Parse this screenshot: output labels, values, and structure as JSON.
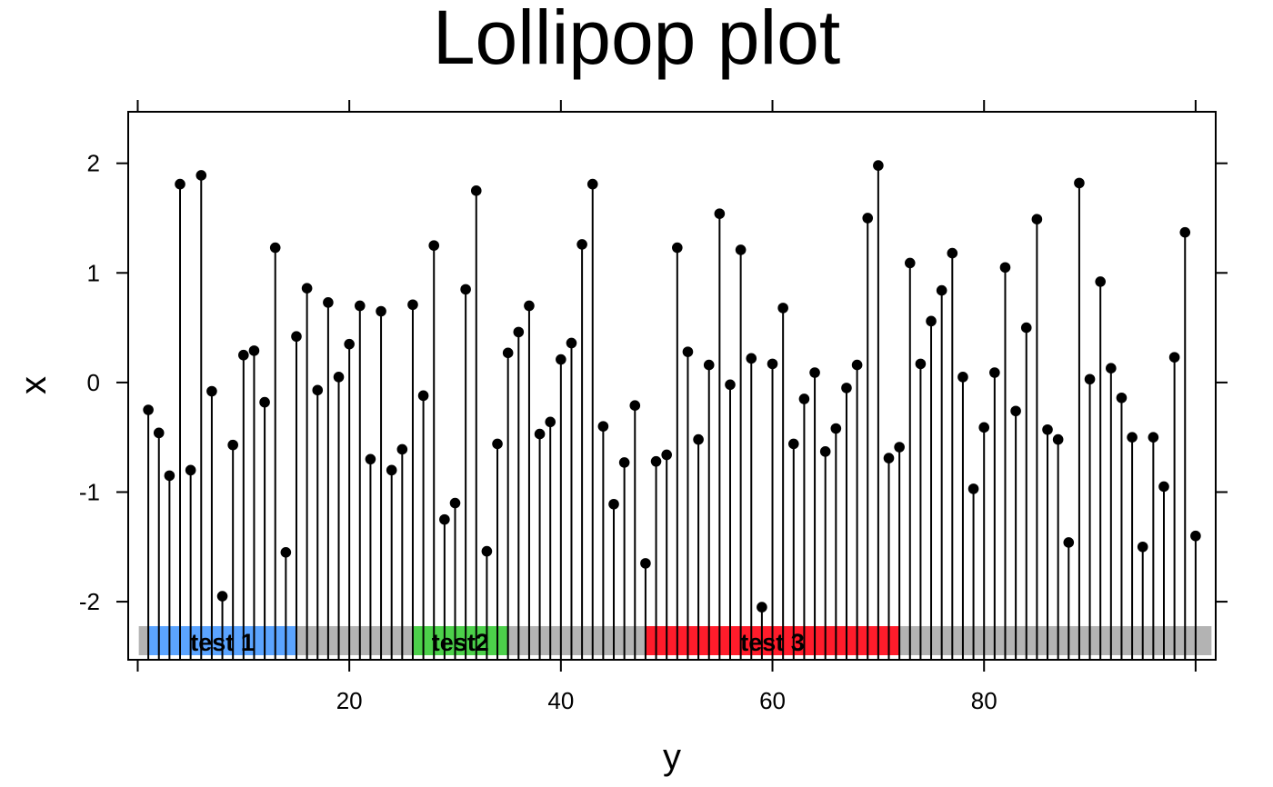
{
  "chart_data": {
    "type": "lollipop",
    "title": "Lollipop plot",
    "xlabel": "y",
    "ylabel": "x",
    "xlim": [
      -0.9,
      101.9
    ],
    "ylim": [
      -2.53,
      2.47
    ],
    "x_ticks": [
      20,
      40,
      60,
      80
    ],
    "x_minor_ticks": [
      0,
      100
    ],
    "y_ticks": [
      -2,
      -1,
      0,
      1,
      2
    ],
    "baseline": -2.53,
    "grid": false,
    "x": [
      1,
      2,
      3,
      4,
      5,
      6,
      7,
      8,
      9,
      10,
      11,
      12,
      13,
      14,
      15,
      16,
      17,
      18,
      19,
      20,
      21,
      22,
      23,
      24,
      25,
      26,
      27,
      28,
      29,
      30,
      31,
      32,
      33,
      34,
      35,
      36,
      37,
      38,
      39,
      40,
      41,
      42,
      43,
      44,
      45,
      46,
      47,
      48,
      49,
      50,
      51,
      52,
      53,
      54,
      55,
      56,
      57,
      58,
      59,
      60,
      61,
      62,
      63,
      64,
      65,
      66,
      67,
      68,
      69,
      70,
      71,
      72,
      73,
      74,
      75,
      76,
      77,
      78,
      79,
      80,
      81,
      82,
      83,
      84,
      85,
      86,
      87,
      88,
      89,
      90,
      91,
      92,
      93,
      94,
      95,
      96,
      97,
      98,
      99,
      100
    ],
    "values": [
      -0.25,
      -0.46,
      -0.85,
      1.81,
      -0.8,
      1.89,
      -0.08,
      -1.95,
      -0.57,
      0.25,
      0.29,
      -0.18,
      1.23,
      -1.55,
      0.42,
      0.86,
      -0.07,
      0.73,
      0.05,
      0.35,
      0.7,
      -0.7,
      0.65,
      -0.8,
      -0.61,
      0.71,
      -0.12,
      1.25,
      -1.25,
      -1.1,
      0.85,
      1.75,
      -1.54,
      -0.56,
      0.27,
      0.46,
      0.7,
      -0.47,
      -0.36,
      0.21,
      0.36,
      1.26,
      1.81,
      -0.4,
      -1.11,
      -0.73,
      -0.21,
      -1.65,
      -0.72,
      -0.66,
      1.23,
      0.28,
      -0.52,
      0.16,
      1.54,
      -0.02,
      1.21,
      0.22,
      -2.05,
      0.17,
      0.68,
      -0.56,
      -0.15,
      0.09,
      -0.63,
      -0.42,
      -0.05,
      0.16,
      1.5,
      1.98,
      -0.69,
      -0.59,
      1.09,
      0.17,
      0.56,
      0.84,
      1.18,
      0.05,
      -0.97,
      -0.41,
      0.09,
      1.05,
      -0.26,
      0.5,
      1.49,
      -0.43,
      -0.52,
      -1.46,
      1.82,
      0.03,
      0.92,
      0.13,
      -0.14,
      -0.5,
      -1.5,
      -0.5,
      -0.95,
      0.23,
      1.37,
      -1.4
    ],
    "point_color": "#000000",
    "track": {
      "from": 0.1,
      "to": 101.5,
      "color": "#B3B3B3"
    },
    "bands": [
      {
        "label": "test 1",
        "from": 1.0,
        "to": 15.0,
        "color": "#5BA4FF"
      },
      {
        "label": "test2",
        "from": 26.0,
        "to": 35.0,
        "color": "#4CD04A"
      },
      {
        "label": "test 3",
        "from": 48.0,
        "to": 72.0,
        "color": "#FF1C2B"
      }
    ]
  }
}
